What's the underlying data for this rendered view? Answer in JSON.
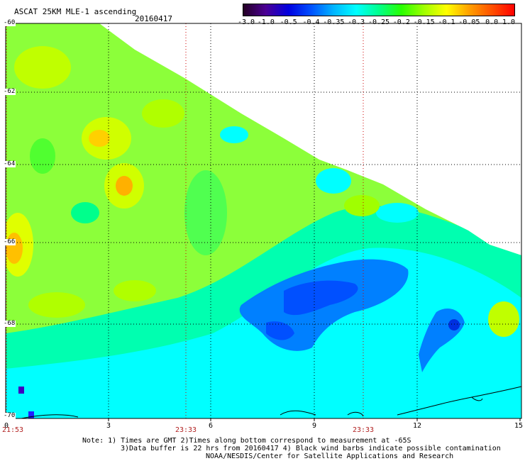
{
  "header": {
    "title": "ASCAT 25KM MLE-1 ascending",
    "date": "20160417"
  },
  "colorbar": {
    "labels": [
      "-3.0",
      "-1.0",
      "-0.5",
      "-0.4",
      "-0.35",
      "-0.3",
      "-0.25",
      "-0.2",
      "-0.15",
      "-0.1",
      "-0.05",
      "0.0",
      "1.0"
    ],
    "colors": [
      "#240024",
      "#4b0094",
      "#0000e0",
      "#0050ff",
      "#00b4ff",
      "#00ffff",
      "#00ff8c",
      "#28ff00",
      "#a0ff00",
      "#ffff00",
      "#ffa000",
      "#ff5000",
      "#ff0000"
    ]
  },
  "axes": {
    "lat_labels": [
      "-60",
      "-62",
      "-64",
      "-66",
      "-68",
      "-70"
    ],
    "lon_labels": [
      "0",
      "3",
      "6",
      "9",
      "12",
      "15"
    ],
    "time_labels": [
      "21:53",
      "23:33",
      "23:33"
    ]
  },
  "notes": {
    "line1": "Note: 1) Times are GMT 2)Times along bottom correspond to measurement at -65S",
    "line2": "3)Data buffer is 22 hrs from 20160417 4) Black wind barbs indicate possible contamination",
    "line3": "NOAA/NESDIS/Center for Satellite Applications and Research"
  }
}
